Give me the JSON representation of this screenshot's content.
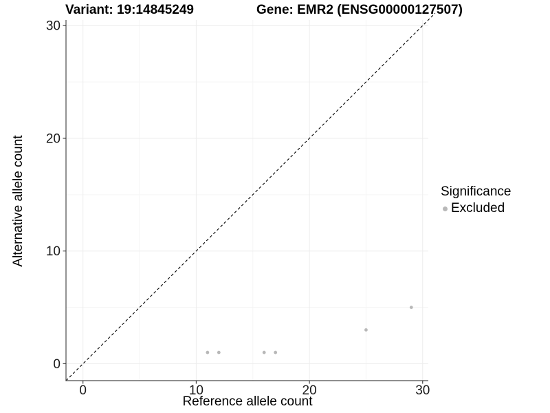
{
  "chart_data": {
    "type": "scatter",
    "title_left": "Variant: 19:14845249",
    "title_right": "Gene: EMR2 (ENSG00000127507)",
    "xlabel": "Reference allele count",
    "ylabel": "Alternative allele count",
    "xlim": [
      -1.5,
      30.5
    ],
    "ylim": [
      -1.5,
      30.5
    ],
    "x_ticks": [
      0,
      10,
      20,
      30
    ],
    "y_ticks": [
      0,
      10,
      20,
      30
    ],
    "x_minor_ticks": [
      5,
      15,
      25
    ],
    "y_minor_ticks": [
      5,
      15,
      25
    ],
    "grid": "major+minor",
    "legend": {
      "position": "right",
      "title": "Significance",
      "items": [
        {
          "label": "Excluded",
          "color": "#b8b8b8"
        }
      ]
    },
    "series": [
      {
        "name": "Excluded",
        "color": "#b8b8b8",
        "points": [
          [
            11,
            1
          ],
          [
            12,
            1
          ],
          [
            16,
            1
          ],
          [
            17,
            1
          ],
          [
            25,
            3
          ],
          [
            29,
            5
          ]
        ]
      }
    ],
    "reference_line": {
      "slope": 1,
      "intercept": 0,
      "style": "dashed",
      "color": "#000000"
    }
  },
  "colors": {
    "axis_line": "#4a4a4a",
    "tick_mark": "#333333",
    "tick_label": "#1a1a1a",
    "grid_major": "#ececec",
    "grid_minor": "#f5f5f5"
  }
}
